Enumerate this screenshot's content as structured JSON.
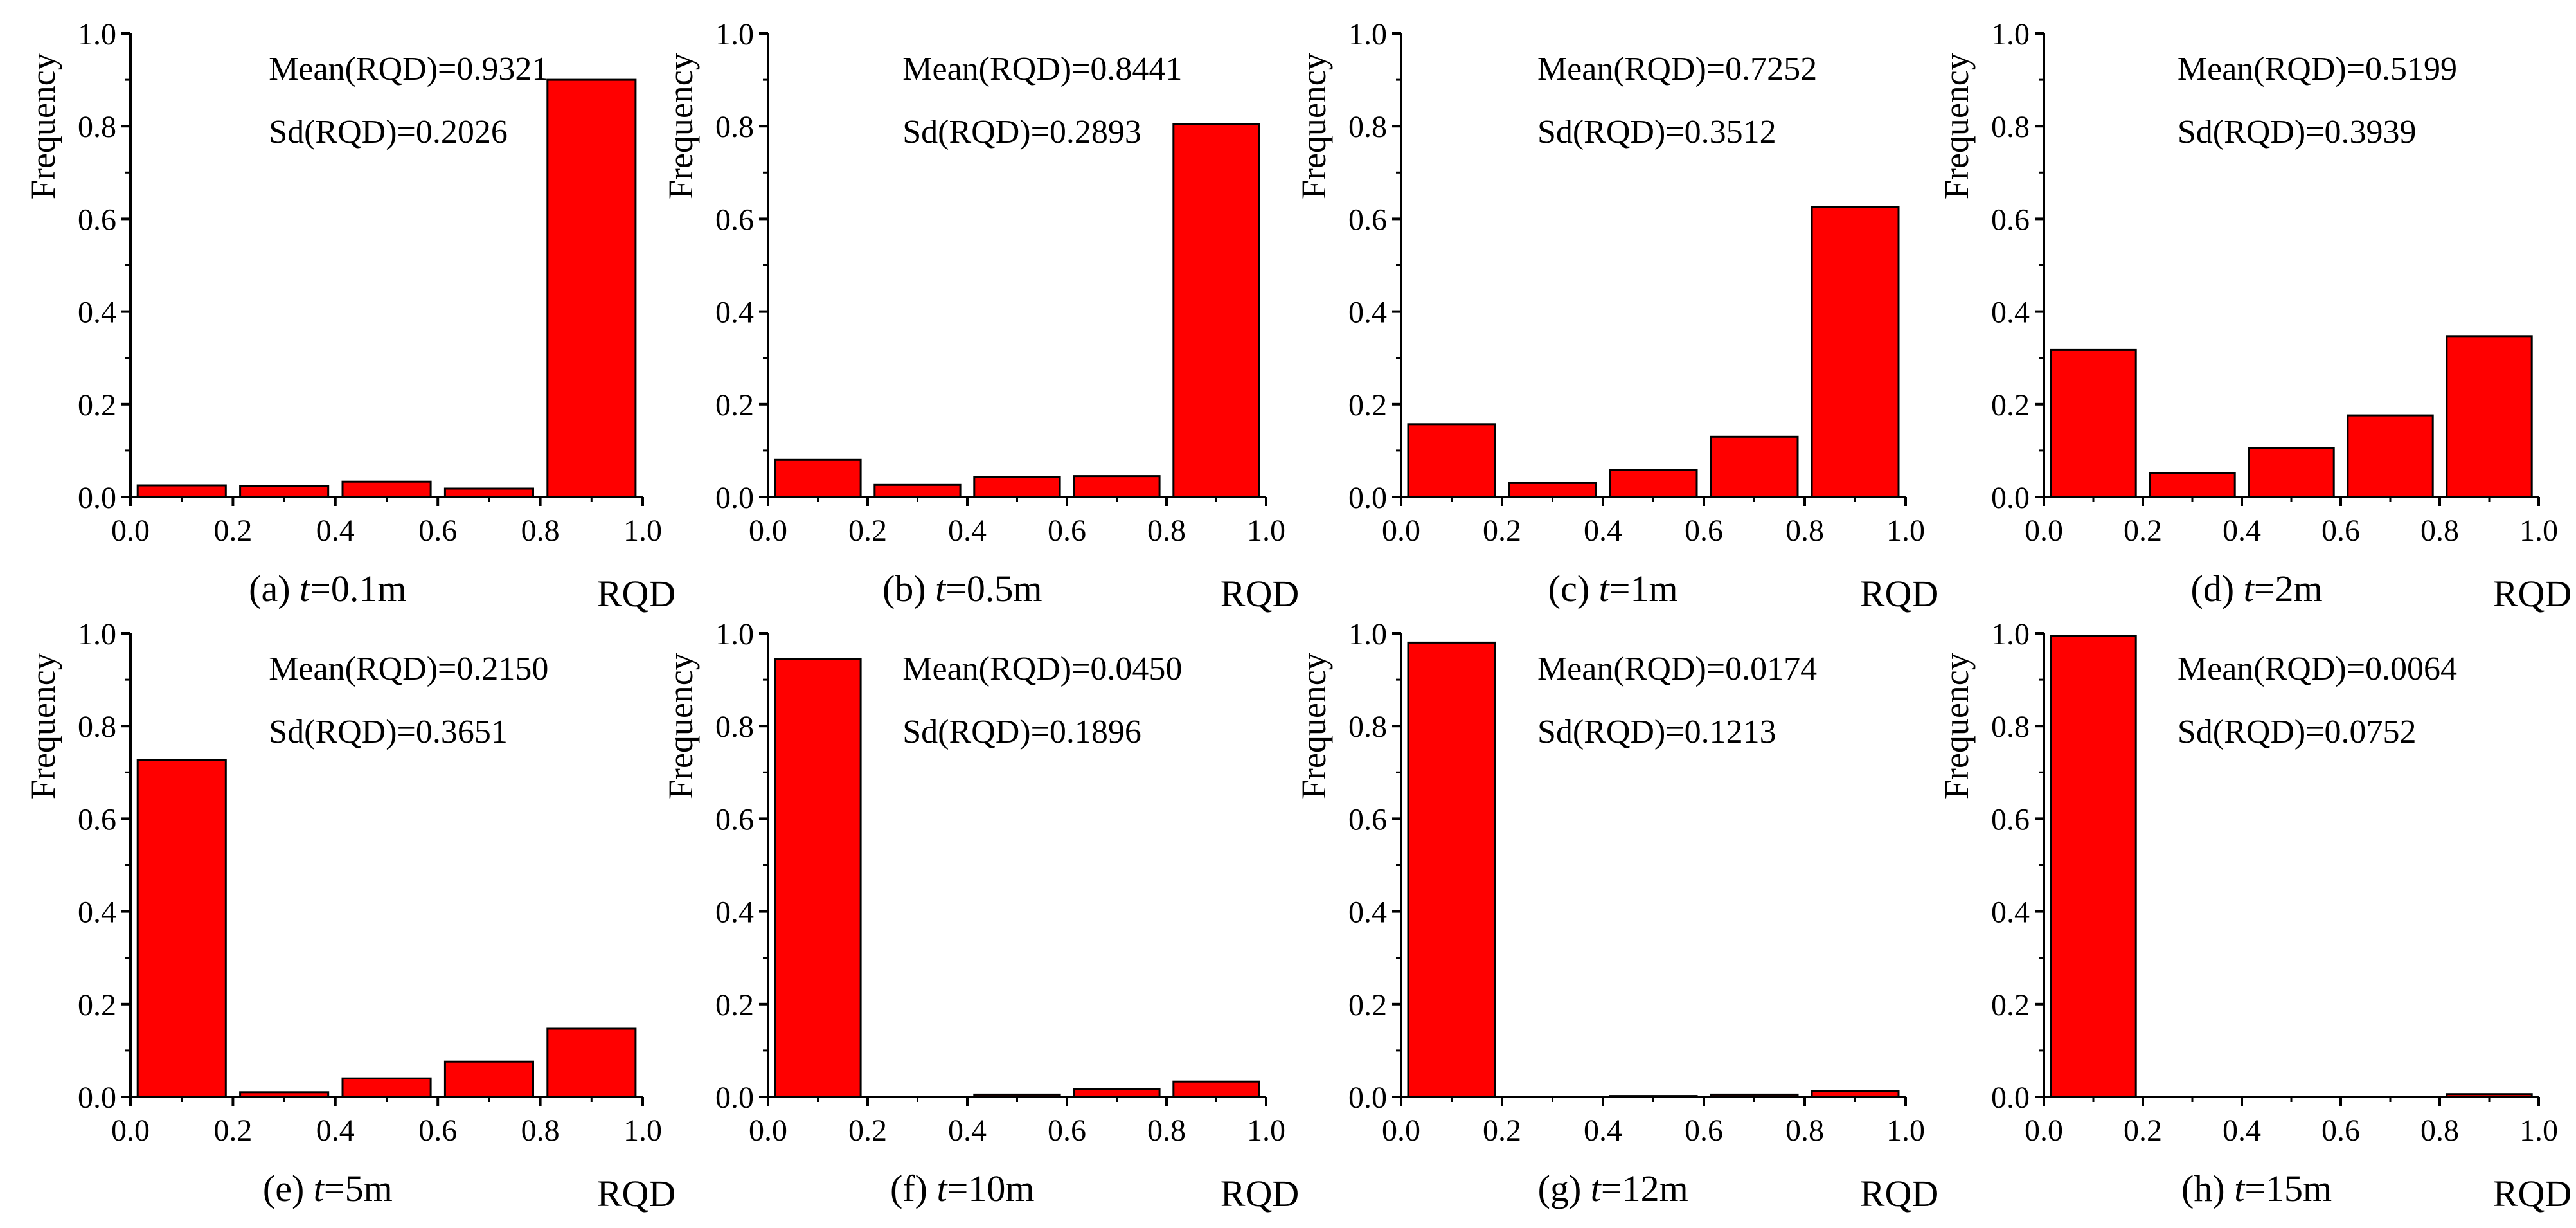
{
  "figure": {
    "bar_color": "#ff0000",
    "bar_edge_color": "#000000",
    "axis_color": "#000000"
  },
  "chart_data": [
    {
      "type": "bar",
      "caption_prefix": "(a) ",
      "caption_var": "t",
      "caption_suffix": "=0.1m",
      "xlabel": "RQD",
      "ylabel": "Frequency",
      "xlim": [
        0,
        1
      ],
      "ylim": [
        0,
        1
      ],
      "xticks": [
        "0.0",
        "0.2",
        "0.4",
        "0.6",
        "0.8",
        "1.0"
      ],
      "yticks": [
        "0.0",
        "0.2",
        "0.4",
        "0.6",
        "0.8",
        "1.0"
      ],
      "bins": [
        [
          0,
          0.2
        ],
        [
          0.2,
          0.4
        ],
        [
          0.4,
          0.6
        ],
        [
          0.6,
          0.8
        ],
        [
          0.8,
          1.0
        ]
      ],
      "values": [
        0.025,
        0.023,
        0.033,
        0.018,
        0.9
      ],
      "mean_label": "Mean(RQD)=0.9321",
      "sd_label": "Sd(RQD)=0.2026"
    },
    {
      "type": "bar",
      "caption_prefix": "(b) ",
      "caption_var": "t",
      "caption_suffix": "=0.5m",
      "xlabel": "RQD",
      "ylabel": "Frequency",
      "xlim": [
        0,
        1
      ],
      "ylim": [
        0,
        1
      ],
      "xticks": [
        "0.0",
        "0.2",
        "0.4",
        "0.6",
        "0.8",
        "1.0"
      ],
      "yticks": [
        "0.0",
        "0.2",
        "0.4",
        "0.6",
        "0.8",
        "1.0"
      ],
      "bins": [
        [
          0,
          0.2
        ],
        [
          0.2,
          0.4
        ],
        [
          0.4,
          0.6
        ],
        [
          0.6,
          0.8
        ],
        [
          0.8,
          1.0
        ]
      ],
      "values": [
        0.08,
        0.026,
        0.043,
        0.045,
        0.805
      ],
      "mean_label": "Mean(RQD)=0.8441",
      "sd_label": "Sd(RQD)=0.2893"
    },
    {
      "type": "bar",
      "caption_prefix": "(c) ",
      "caption_var": "t",
      "caption_suffix": "=1m",
      "xlabel": "RQD",
      "ylabel": "Frequency",
      "xlim": [
        0,
        1
      ],
      "ylim": [
        0,
        1
      ],
      "xticks": [
        "0.0",
        "0.2",
        "0.4",
        "0.6",
        "0.8",
        "1.0"
      ],
      "yticks": [
        "0.0",
        "0.2",
        "0.4",
        "0.6",
        "0.8",
        "1.0"
      ],
      "bins": [
        [
          0,
          0.2
        ],
        [
          0.2,
          0.4
        ],
        [
          0.4,
          0.6
        ],
        [
          0.6,
          0.8
        ],
        [
          0.8,
          1.0
        ]
      ],
      "values": [
        0.157,
        0.03,
        0.058,
        0.13,
        0.625
      ],
      "mean_label": "Mean(RQD)=0.7252",
      "sd_label": "Sd(RQD)=0.3512"
    },
    {
      "type": "bar",
      "caption_prefix": "(d) ",
      "caption_var": "t",
      "caption_suffix": "=2m",
      "xlabel": "RQD",
      "ylabel": "Frequency",
      "xlim": [
        0,
        1
      ],
      "ylim": [
        0,
        1
      ],
      "xticks": [
        "0.0",
        "0.2",
        "0.4",
        "0.6",
        "0.8",
        "1.0"
      ],
      "yticks": [
        "0.0",
        "0.2",
        "0.4",
        "0.6",
        "0.8",
        "1.0"
      ],
      "bins": [
        [
          0,
          0.2
        ],
        [
          0.2,
          0.4
        ],
        [
          0.4,
          0.6
        ],
        [
          0.6,
          0.8
        ],
        [
          0.8,
          1.0
        ]
      ],
      "values": [
        0.317,
        0.052,
        0.105,
        0.176,
        0.347
      ],
      "mean_label": "Mean(RQD)=0.5199",
      "sd_label": "Sd(RQD)=0.3939"
    },
    {
      "type": "bar",
      "caption_prefix": "(e) ",
      "caption_var": "t",
      "caption_suffix": "=5m",
      "xlabel": "RQD",
      "ylabel": "Frequency",
      "xlim": [
        0,
        1
      ],
      "ylim": [
        0,
        1
      ],
      "xticks": [
        "0.0",
        "0.2",
        "0.4",
        "0.6",
        "0.8",
        "1.0"
      ],
      "yticks": [
        "0.0",
        "0.2",
        "0.4",
        "0.6",
        "0.8",
        "1.0"
      ],
      "bins": [
        [
          0,
          0.2
        ],
        [
          0.2,
          0.4
        ],
        [
          0.4,
          0.6
        ],
        [
          0.6,
          0.8
        ],
        [
          0.8,
          1.0
        ]
      ],
      "values": [
        0.727,
        0.01,
        0.04,
        0.076,
        0.147
      ],
      "mean_label": "Mean(RQD)=0.2150",
      "sd_label": "Sd(RQD)=0.3651"
    },
    {
      "type": "bar",
      "caption_prefix": "(f) ",
      "caption_var": "t",
      "caption_suffix": "=10m",
      "xlabel": "RQD",
      "ylabel": "Frequency",
      "xlim": [
        0,
        1
      ],
      "ylim": [
        0,
        1
      ],
      "xticks": [
        "0.0",
        "0.2",
        "0.4",
        "0.6",
        "0.8",
        "1.0"
      ],
      "yticks": [
        "0.0",
        "0.2",
        "0.4",
        "0.6",
        "0.8",
        "1.0"
      ],
      "bins": [
        [
          0,
          0.2
        ],
        [
          0.2,
          0.4
        ],
        [
          0.4,
          0.6
        ],
        [
          0.6,
          0.8
        ],
        [
          0.8,
          1.0
        ]
      ],
      "values": [
        0.945,
        0.0,
        0.005,
        0.017,
        0.033
      ],
      "mean_label": "Mean(RQD)=0.0450",
      "sd_label": "Sd(RQD)=0.1896"
    },
    {
      "type": "bar",
      "caption_prefix": "(g) ",
      "caption_var": "t",
      "caption_suffix": "=12m",
      "xlabel": "RQD",
      "ylabel": "Frequency",
      "xlim": [
        0,
        1
      ],
      "ylim": [
        0,
        1
      ],
      "xticks": [
        "0.0",
        "0.2",
        "0.4",
        "0.6",
        "0.8",
        "1.0"
      ],
      "yticks": [
        "0.0",
        "0.2",
        "0.4",
        "0.6",
        "0.8",
        "1.0"
      ],
      "bins": [
        [
          0,
          0.2
        ],
        [
          0.2,
          0.4
        ],
        [
          0.4,
          0.6
        ],
        [
          0.6,
          0.8
        ],
        [
          0.8,
          1.0
        ]
      ],
      "values": [
        0.98,
        0.0,
        0.002,
        0.005,
        0.013
      ],
      "mean_label": "Mean(RQD)=0.0174",
      "sd_label": "Sd(RQD)=0.1213"
    },
    {
      "type": "bar",
      "caption_prefix": "(h) ",
      "caption_var": "t",
      "caption_suffix": "=15m",
      "xlabel": "RQD",
      "ylabel": "Frequency",
      "xlim": [
        0,
        1
      ],
      "ylim": [
        0,
        1
      ],
      "xticks": [
        "0.0",
        "0.2",
        "0.4",
        "0.6",
        "0.8",
        "1.0"
      ],
      "yticks": [
        "0.0",
        "0.2",
        "0.4",
        "0.6",
        "0.8",
        "1.0"
      ],
      "bins": [
        [
          0,
          0.2
        ],
        [
          0.2,
          0.4
        ],
        [
          0.4,
          0.6
        ],
        [
          0.6,
          0.8
        ],
        [
          0.8,
          1.0
        ]
      ],
      "values": [
        0.995,
        0.0,
        0.0,
        0.0,
        0.006
      ],
      "mean_label": "Mean(RQD)=0.0064",
      "sd_label": "Sd(RQD)=0.0752"
    }
  ]
}
